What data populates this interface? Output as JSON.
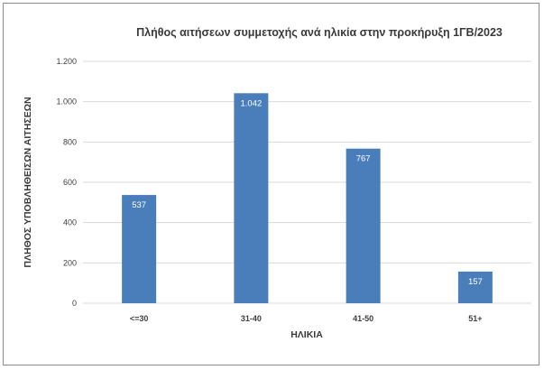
{
  "chart_data": {
    "type": "bar",
    "title": "Πλήθος αιτήσεων συμμετοχής ανά ηλικία στην προκήρυξη 1ΓΒ/2023",
    "xlabel": "ΗΛΙΚΙΑ",
    "ylabel": "ΠΛΗΘΟΣ ΥΠΟΒΛΗΘΕΙΣΩΝ ΑΙΤΗΣΕΩΝ",
    "categories": [
      "<=30",
      "31-40",
      "41-50",
      "51+"
    ],
    "values": [
      537,
      1042,
      767,
      157
    ],
    "value_labels": [
      "537",
      "1.042",
      "767",
      "157"
    ],
    "ylim": [
      0,
      1200
    ],
    "yticks": [
      0,
      200,
      400,
      600,
      800,
      1000,
      1200
    ],
    "ytick_labels": [
      "0",
      "200",
      "400",
      "600",
      "800",
      "1.000",
      "1.200"
    ],
    "grid": true,
    "bar_color": "#4a7ebb",
    "grid_color": "#d9d9d9"
  }
}
